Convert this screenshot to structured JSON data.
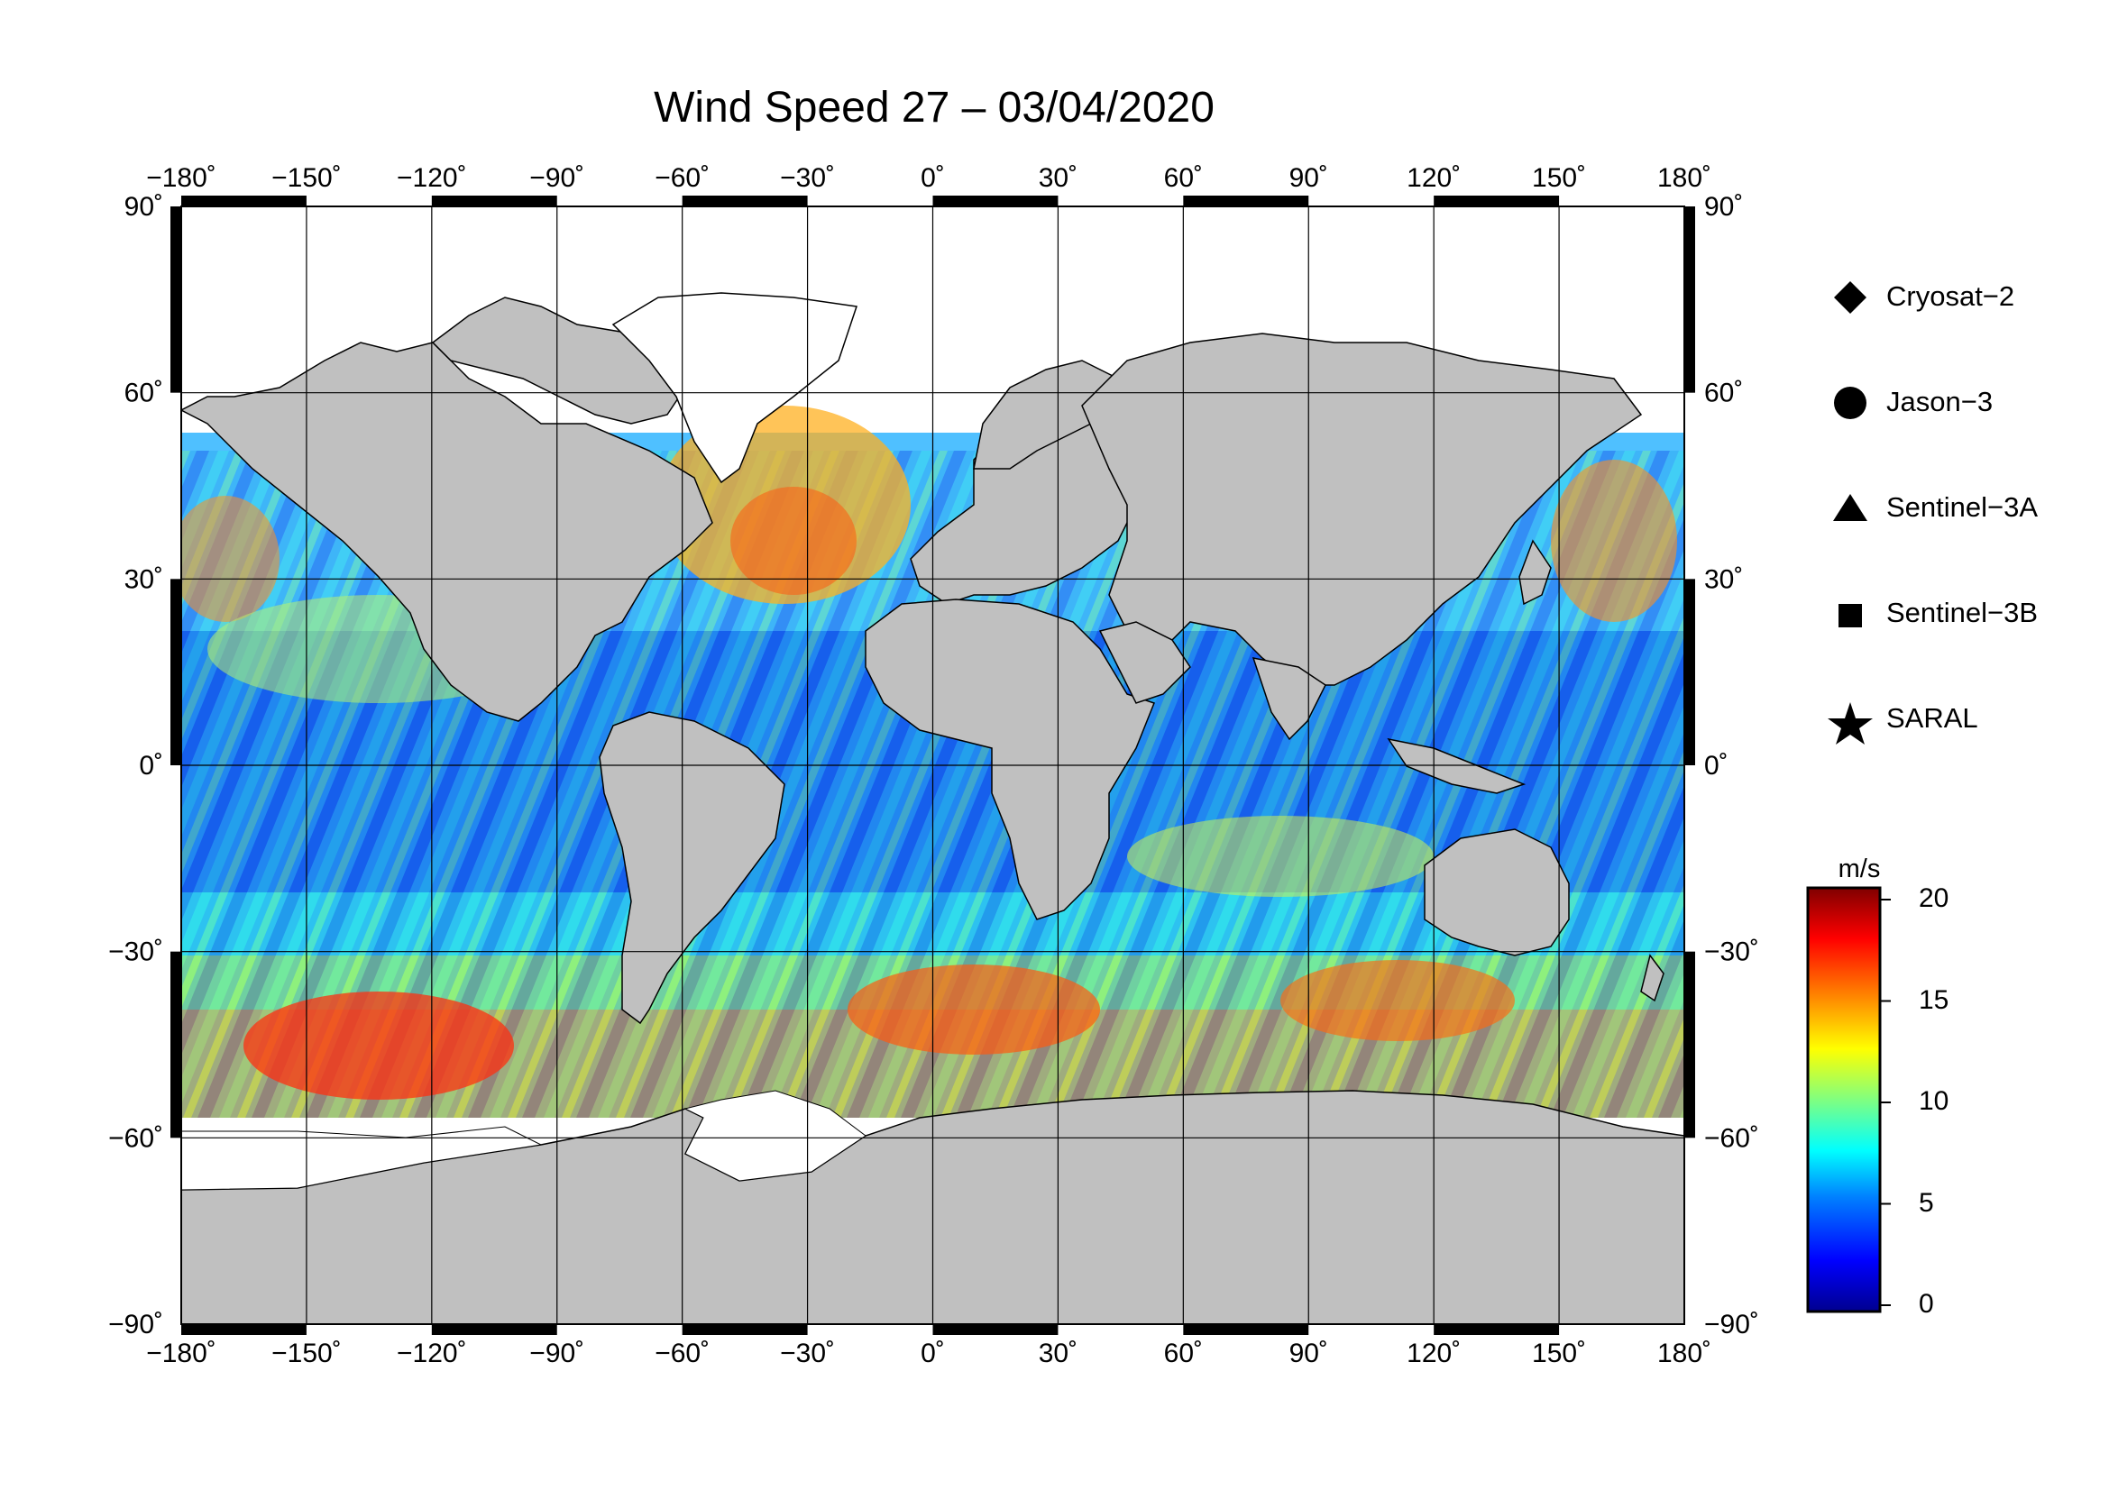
{
  "title": "Wind Speed 27 – 03/04/2020",
  "map": {
    "projection": "equirectangular",
    "lon_range": [
      -180,
      180
    ],
    "lat_range": [
      -90,
      90
    ],
    "lon_ticks": [
      -180,
      -150,
      -120,
      -90,
      -60,
      -30,
      0,
      30,
      60,
      90,
      120,
      150,
      180
    ],
    "lat_ticks": [
      90,
      60,
      30,
      0,
      -30,
      -60,
      -90
    ],
    "lon_tick_labels": [
      "−180˚",
      "−150˚",
      "−120˚",
      "−90˚",
      "−60˚",
      "−30˚",
      "0˚",
      "30˚",
      "60˚",
      "90˚",
      "120˚",
      "150˚",
      "180˚"
    ],
    "lat_tick_labels": [
      "90˚",
      "60˚",
      "30˚",
      "0˚",
      "−30˚",
      "−60˚",
      "−90˚"
    ],
    "grid": true,
    "land_color": "#c0c0c0",
    "ice_color": "#ffffff",
    "data_field": "along-track altimeter wind speed swaths over ocean"
  },
  "legend": {
    "items": [
      {
        "label": "Cryosat−2",
        "marker": "diamond"
      },
      {
        "label": "Jason−3",
        "marker": "circle"
      },
      {
        "label": "Sentinel−3A",
        "marker": "triangle"
      },
      {
        "label": "Sentinel−3B",
        "marker": "square"
      },
      {
        "label": "SARAL",
        "marker": "star"
      }
    ]
  },
  "colorbar": {
    "unit": "m/s",
    "min": 0,
    "max": 20,
    "ticks": [
      20,
      15,
      10,
      5,
      0
    ],
    "colormap": "jet",
    "colors": [
      "#00008f",
      "#0000ff",
      "#0080ff",
      "#00ffff",
      "#80ff80",
      "#ffff00",
      "#ff8000",
      "#ff0000",
      "#800000"
    ]
  }
}
